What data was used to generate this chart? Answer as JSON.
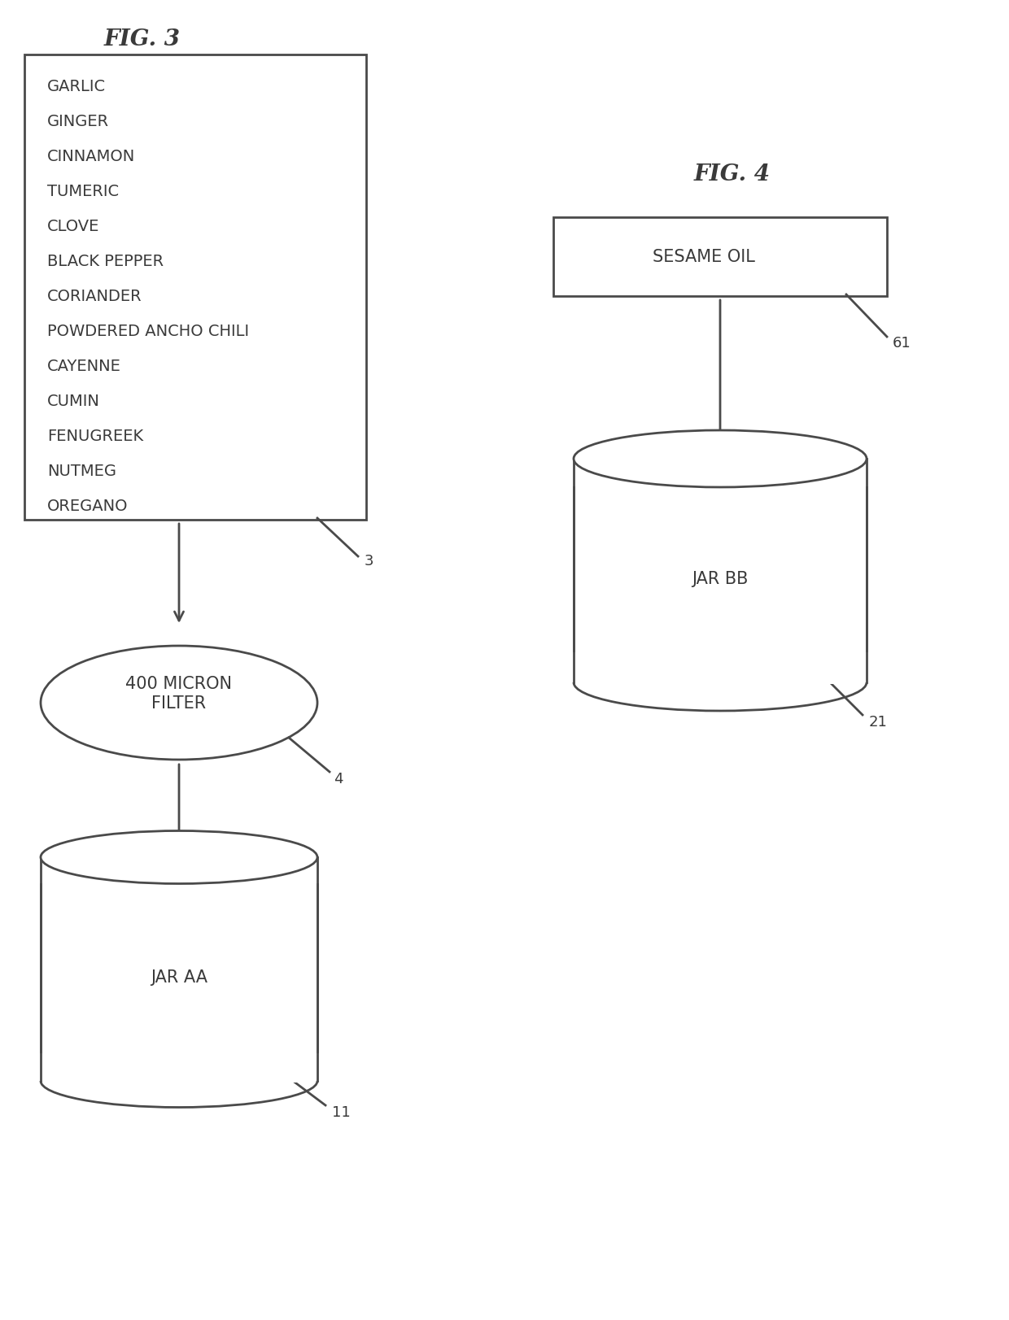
{
  "fig3_title": "FIG. 3",
  "fig4_title": "FIG. 4",
  "spice_list": [
    "GARLIC",
    "GINGER",
    "CINNAMON",
    "TUMERIC",
    "CLOVE",
    "BLACK PEPPER",
    "CORIANDER",
    "POWDERED ANCHO CHILI",
    "CAYENNE",
    "CUMIN",
    "FENUGREEK",
    "NUTMEG",
    "OREGANO"
  ],
  "box3_label": "3",
  "filter_label": "400 MICRON\nFILTER",
  "filter_ref": "4",
  "jar_aa_label": "JAR AA",
  "jar_aa_ref": "11",
  "sesame_oil_label": "SESAME OIL",
  "sesame_oil_ref": "61",
  "jar_bb_label": "JAR BB",
  "jar_bb_ref": "21",
  "bg_color": "#ffffff",
  "line_color": "#4a4a4a",
  "text_color": "#3a3a3a",
  "font_size_title": 20,
  "font_size_items": 14,
  "font_size_labels": 15,
  "font_size_refs": 13
}
